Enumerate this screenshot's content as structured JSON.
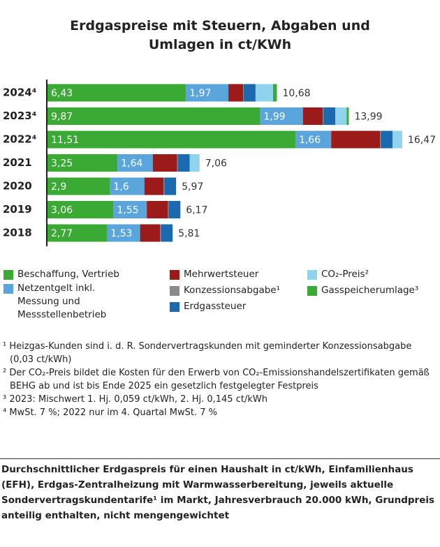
{
  "chart_data": {
    "type": "stacked-bar-horizontal",
    "title": "Erdgaspreise mit Steuern, Abgaben und Umlagen in ct/KWh",
    "categories": [
      "2024⁴",
      "2023⁴",
      "2022⁴",
      "2021",
      "2020",
      "2019",
      "2018"
    ],
    "totals": [
      "10,68",
      "13,99",
      "16,47",
      "7,06",
      "5,97",
      "6,17",
      "5,81"
    ],
    "series": [
      {
        "name": "Beschaffung, Vertrieb",
        "color": "#3aaa35",
        "values": [
          6.43,
          9.87,
          11.51,
          3.25,
          2.9,
          3.06,
          2.77
        ],
        "value_labels": [
          "6,43",
          "9,87",
          "11,51",
          "3,25",
          "2,9",
          "3,06",
          "2,77"
        ]
      },
      {
        "name": "Netzentgelt inkl. Messung und Messstellenbetrieb",
        "color": "#5aa5dc",
        "values": [
          1.97,
          1.99,
          1.66,
          1.64,
          1.6,
          1.55,
          1.53
        ],
        "value_labels": [
          "1,97",
          "1,99",
          "1,66",
          "1,64",
          "1,6",
          "1,55",
          "1,53"
        ]
      },
      {
        "name": "Mehrwertsteuer",
        "color": "#9b1b1b",
        "values": [
          0.68,
          0.92,
          2.27,
          1.13,
          0.89,
          0.98,
          0.93
        ]
      },
      {
        "name": "Konzessionsabgabe¹",
        "color": "#8a8a8a",
        "values": [
          0.03,
          0.03,
          0.03,
          0.03,
          0.03,
          0.03,
          0.03
        ]
      },
      {
        "name": "Erdgassteuer",
        "color": "#1b6ab0",
        "values": [
          0.55,
          0.55,
          0.55,
          0.55,
          0.55,
          0.55,
          0.55
        ]
      },
      {
        "name": "CO₂-Preis²",
        "color": "#8fd3ee",
        "values": [
          0.81,
          0.53,
          0.45,
          0.46,
          null,
          null,
          null
        ]
      },
      {
        "name": "Gasspeicherumlage³",
        "color": "#3aaa35",
        "values": [
          0.18,
          0.1,
          null,
          null,
          null,
          null,
          null
        ]
      }
    ]
  },
  "footnotes": [
    "¹ Heizgas-Kunden sind i. d. R. Sondervertragskunden mit geminderter Konzessionsabgabe (0,03 ct/kWh)",
    "² Der CO₂-Preis bildet die Kosten für den Erwerb von CO₂-Emissionshandelszertifikaten gemäß BEHG ab und ist bis Ende 2025 ein gesetzlich festgelegter Festpreis",
    "³ 2023: Mischwert 1. Hj. 0,059 ct/kWh, 2. Hj. 0,145 ct/kWh",
    "⁴ MwSt. 7 %; 2022 nur im 4. Quartal MwSt. 7 %"
  ],
  "note": "Durchschnittlicher Erdgaspreis für einen Haushalt in ct/kWh, Einfamilienhaus (EFH), Erdgas-Zentralheizung mit Warmwasserbereitung, jeweils aktuelle Sondervertragskundentarife¹ im Markt, Jahresverbrauch 20.000 kWh, Grundpreis anteilig enthalten, nicht mengengewichtet"
}
